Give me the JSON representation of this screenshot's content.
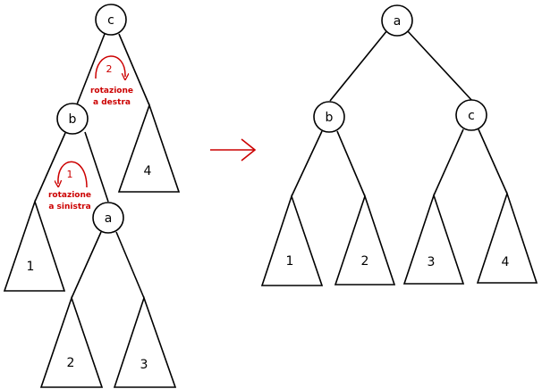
{
  "left_tree": {
    "nodes": {
      "c": "c",
      "b": "b",
      "a": "a"
    },
    "subtrees": {
      "t1": "1",
      "t2": "2",
      "t3": "3",
      "t4": "4"
    },
    "rotations": [
      {
        "number": "2",
        "line1": "rotazione",
        "line2": "a destra"
      },
      {
        "number": "1",
        "line1": "rotazione",
        "line2": "a sinistra"
      }
    ]
  },
  "right_tree": {
    "nodes": {
      "a": "a",
      "b": "b",
      "c": "c"
    },
    "subtrees": {
      "t1": "1",
      "t2": "2",
      "t3": "3",
      "t4": "4"
    }
  },
  "colors": {
    "annotation": "#cc0000",
    "stroke": "#000000"
  },
  "icons": {
    "transform": "right-arrow-icon"
  }
}
